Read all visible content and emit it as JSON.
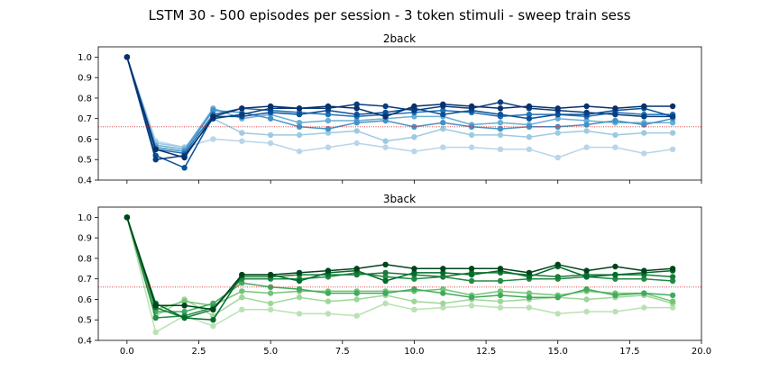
{
  "figure": {
    "title": "LSTM 30 - 500 episodes per session - 3 token stimuli - sweep train sess"
  },
  "chart_data": [
    {
      "type": "line",
      "title": "2back",
      "xlabel": "",
      "ylabel": "",
      "xlim": [
        -1,
        20
      ],
      "ylim": [
        0.4,
        1.05
      ],
      "xticks": [
        0.0,
        2.5,
        5.0,
        7.5,
        10.0,
        12.5,
        15.0,
        17.5,
        20.0
      ],
      "xtick_labels": [],
      "yticks": [
        0.4,
        0.5,
        0.6,
        0.7,
        0.8,
        0.9,
        1.0
      ],
      "ytick_labels": [
        "0.4",
        "0.5",
        "0.6",
        "0.7",
        "0.8",
        "0.9",
        "1.0"
      ],
      "grid": false,
      "reference_line": {
        "y": 0.66,
        "color": "#d62728",
        "style": "dotted"
      },
      "x": [
        0,
        1,
        2,
        3,
        4,
        5,
        6,
        7,
        8,
        9,
        10,
        11,
        12,
        13,
        14,
        15,
        16,
        17,
        18,
        19
      ],
      "series": [
        {
          "color": "#b8d5ea",
          "values": [
            1.0,
            0.59,
            0.56,
            0.6,
            0.59,
            0.58,
            0.54,
            0.56,
            0.58,
            0.56,
            0.54,
            0.56,
            0.56,
            0.55,
            0.55,
            0.51,
            0.56,
            0.56,
            0.53,
            0.55
          ]
        },
        {
          "color": "#9ecae1",
          "values": [
            1.0,
            0.58,
            0.56,
            0.7,
            0.63,
            0.62,
            0.62,
            0.63,
            0.64,
            0.59,
            0.61,
            0.65,
            0.62,
            0.62,
            0.61,
            0.63,
            0.64,
            0.62,
            0.63,
            0.63
          ]
        },
        {
          "color": "#6baed6",
          "values": [
            1.0,
            0.57,
            0.55,
            0.75,
            0.7,
            0.72,
            0.68,
            0.69,
            0.69,
            0.7,
            0.71,
            0.71,
            0.67,
            0.68,
            0.67,
            0.7,
            0.69,
            0.68,
            0.68,
            0.68
          ]
        },
        {
          "color": "#4292c6",
          "values": [
            1.0,
            0.56,
            0.54,
            0.74,
            0.73,
            0.7,
            0.66,
            0.65,
            0.68,
            0.69,
            0.66,
            0.68,
            0.66,
            0.65,
            0.66,
            0.66,
            0.67,
            0.69,
            0.67,
            0.7
          ]
        },
        {
          "color": "#2171b5",
          "values": [
            1.0,
            0.55,
            0.53,
            0.72,
            0.75,
            0.74,
            0.73,
            0.72,
            0.71,
            0.72,
            0.73,
            0.74,
            0.73,
            0.71,
            0.72,
            0.72,
            0.71,
            0.73,
            0.72,
            0.72
          ]
        },
        {
          "color": "#08519c",
          "values": [
            1.0,
            0.52,
            0.46,
            0.71,
            0.71,
            0.73,
            0.72,
            0.74,
            0.72,
            0.73,
            0.75,
            0.72,
            0.74,
            0.72,
            0.7,
            0.72,
            0.72,
            0.74,
            0.75,
            0.71
          ]
        },
        {
          "color": "#083d7f",
          "values": [
            1.0,
            0.5,
            0.52,
            0.7,
            0.72,
            0.75,
            0.75,
            0.75,
            0.77,
            0.76,
            0.74,
            0.76,
            0.75,
            0.78,
            0.75,
            0.74,
            0.73,
            0.72,
            0.71,
            0.71
          ]
        },
        {
          "color": "#08306b",
          "values": [
            1.0,
            0.55,
            0.51,
            0.71,
            0.75,
            0.76,
            0.75,
            0.76,
            0.75,
            0.71,
            0.76,
            0.77,
            0.76,
            0.75,
            0.76,
            0.75,
            0.76,
            0.75,
            0.76,
            0.76
          ]
        }
      ]
    },
    {
      "type": "line",
      "title": "3back",
      "xlabel": "",
      "ylabel": "",
      "xlim": [
        -1,
        20
      ],
      "ylim": [
        0.4,
        1.05
      ],
      "xticks": [
        0.0,
        2.5,
        5.0,
        7.5,
        10.0,
        12.5,
        15.0,
        17.5,
        20.0
      ],
      "xtick_labels": [
        "0.0",
        "2.5",
        "5.0",
        "7.5",
        "10.0",
        "12.5",
        "15.0",
        "17.5",
        "20.0"
      ],
      "yticks": [
        0.4,
        0.5,
        0.6,
        0.7,
        0.8,
        0.9,
        1.0
      ],
      "ytick_labels": [
        "0.4",
        "0.5",
        "0.6",
        "0.7",
        "0.8",
        "0.9",
        "1.0"
      ],
      "grid": false,
      "reference_line": {
        "y": 0.66,
        "color": "#d62728",
        "style": "dotted"
      },
      "x": [
        0,
        1,
        2,
        3,
        4,
        5,
        6,
        7,
        8,
        9,
        10,
        11,
        12,
        13,
        14,
        15,
        16,
        17,
        18,
        19
      ],
      "series": [
        {
          "color": "#b9e2b2",
          "values": [
            1.0,
            0.44,
            0.52,
            0.47,
            0.55,
            0.55,
            0.53,
            0.53,
            0.52,
            0.58,
            0.55,
            0.56,
            0.57,
            0.56,
            0.56,
            0.53,
            0.54,
            0.54,
            0.56,
            0.56
          ]
        },
        {
          "color": "#9ed798",
          "values": [
            1.0,
            0.52,
            0.6,
            0.52,
            0.61,
            0.58,
            0.61,
            0.59,
            0.6,
            0.62,
            0.59,
            0.58,
            0.6,
            0.59,
            0.6,
            0.61,
            0.6,
            0.61,
            0.62,
            0.58
          ]
        },
        {
          "color": "#74c476",
          "values": [
            1.0,
            0.55,
            0.59,
            0.57,
            0.64,
            0.63,
            0.64,
            0.64,
            0.64,
            0.64,
            0.64,
            0.65,
            0.62,
            0.64,
            0.63,
            0.62,
            0.64,
            0.63,
            0.63,
            0.59
          ]
        },
        {
          "color": "#41ab5d",
          "values": [
            1.0,
            0.54,
            0.54,
            0.58,
            0.68,
            0.66,
            0.65,
            0.63,
            0.63,
            0.63,
            0.65,
            0.63,
            0.61,
            0.62,
            0.61,
            0.61,
            0.65,
            0.62,
            0.63,
            0.62
          ]
        },
        {
          "color": "#238b45",
          "values": [
            1.0,
            0.51,
            0.52,
            0.56,
            0.7,
            0.7,
            0.7,
            0.71,
            0.73,
            0.71,
            0.7,
            0.71,
            0.69,
            0.69,
            0.7,
            0.7,
            0.71,
            0.7,
            0.7,
            0.69
          ]
        },
        {
          "color": "#1b7a3a",
          "values": [
            1.0,
            0.56,
            0.51,
            0.55,
            0.71,
            0.71,
            0.72,
            0.72,
            0.72,
            0.73,
            0.72,
            0.71,
            0.73,
            0.73,
            0.72,
            0.71,
            0.72,
            0.72,
            0.72,
            0.71
          ]
        },
        {
          "color": "#006d2c",
          "values": [
            1.0,
            0.58,
            0.51,
            0.5,
            0.72,
            0.72,
            0.69,
            0.73,
            0.74,
            0.69,
            0.73,
            0.73,
            0.72,
            0.74,
            0.71,
            0.76,
            0.71,
            0.72,
            0.73,
            0.74
          ]
        },
        {
          "color": "#00441b",
          "values": [
            1.0,
            0.57,
            0.57,
            0.55,
            0.72,
            0.72,
            0.73,
            0.74,
            0.75,
            0.77,
            0.75,
            0.75,
            0.75,
            0.75,
            0.73,
            0.77,
            0.74,
            0.76,
            0.74,
            0.75
          ]
        }
      ]
    }
  ]
}
